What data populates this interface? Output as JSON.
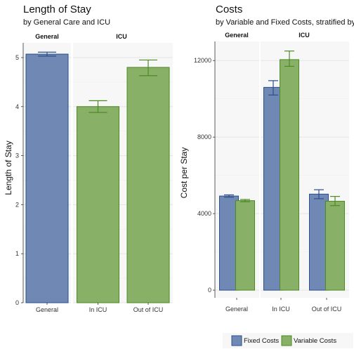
{
  "colors": {
    "fixed_fill": "#6f89b4",
    "fixed_stroke": "#2b4f8a",
    "variable_fill": "#88b066",
    "variable_stroke": "#4d8a26"
  },
  "chart_data": [
    {
      "type": "bar",
      "title": "Length of Stay",
      "subtitle": "by General Care and ICU",
      "ylabel": "Length of Stay",
      "xlabel": "",
      "ylim": [
        0,
        5.3
      ],
      "yticks": [
        0,
        1,
        2,
        3,
        4,
        5
      ],
      "facets": [
        {
          "label": "General",
          "categories": [
            "General"
          ]
        },
        {
          "label": "ICU",
          "categories": [
            "In ICU",
            "Out of ICU"
          ]
        }
      ],
      "bars": [
        {
          "category": "General",
          "value": 5.07,
          "err_low": 5.03,
          "err_high": 5.11,
          "group": "general"
        },
        {
          "category": "In ICU",
          "value": 4.0,
          "err_low": 3.88,
          "err_high": 4.12,
          "group": "icu"
        },
        {
          "category": "Out of ICU",
          "value": 4.8,
          "err_low": 4.63,
          "err_high": 4.95,
          "group": "icu"
        }
      ]
    },
    {
      "type": "bar",
      "title": "Costs",
      "subtitle": "by Variable and Fixed Costs, stratified by",
      "ylabel": "Cost per Stay",
      "xlabel": "",
      "ylim": [
        -400,
        13000
      ],
      "yticks": [
        0,
        4000,
        8000,
        12000
      ],
      "facets": [
        {
          "label": "General",
          "categories": [
            "General"
          ]
        },
        {
          "label": "ICU",
          "categories": [
            "In ICU",
            "Out of ICU"
          ]
        }
      ],
      "categories": [
        "General",
        "In ICU",
        "Out of ICU"
      ],
      "series": [
        {
          "name": "Fixed Costs",
          "values": [
            4920,
            10600,
            5020
          ],
          "err_low": [
            4860,
            10200,
            4780
          ],
          "err_high": [
            4980,
            10950,
            5250
          ]
        },
        {
          "name": "Variable Costs",
          "values": [
            4680,
            12050,
            4650
          ],
          "err_low": [
            4620,
            11700,
            4420
          ],
          "err_high": [
            4740,
            12500,
            4900
          ]
        }
      ],
      "legend_position": "bottom-right"
    }
  ]
}
